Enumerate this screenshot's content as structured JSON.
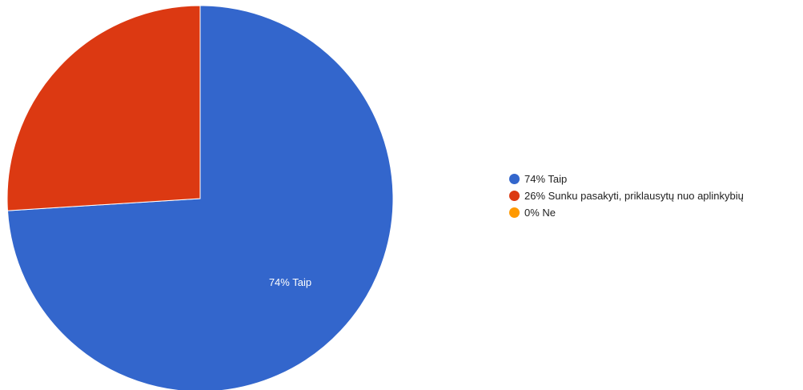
{
  "chart_data": {
    "type": "pie",
    "categories": [
      "Taip",
      "Sunku pasakyti, priklausytų nuo aplinkybių",
      "Ne"
    ],
    "values": [
      74,
      26,
      0
    ],
    "colors": [
      "#3366cc",
      "#dc3912",
      "#ff9900"
    ],
    "slice_labels": [
      "74% Taip",
      "",
      ""
    ],
    "legend": {
      "position": "right",
      "items": [
        "74% Taip",
        "26% Sunku pasakyti, priklausytų nuo aplinkybių",
        "0% Ne"
      ]
    }
  }
}
